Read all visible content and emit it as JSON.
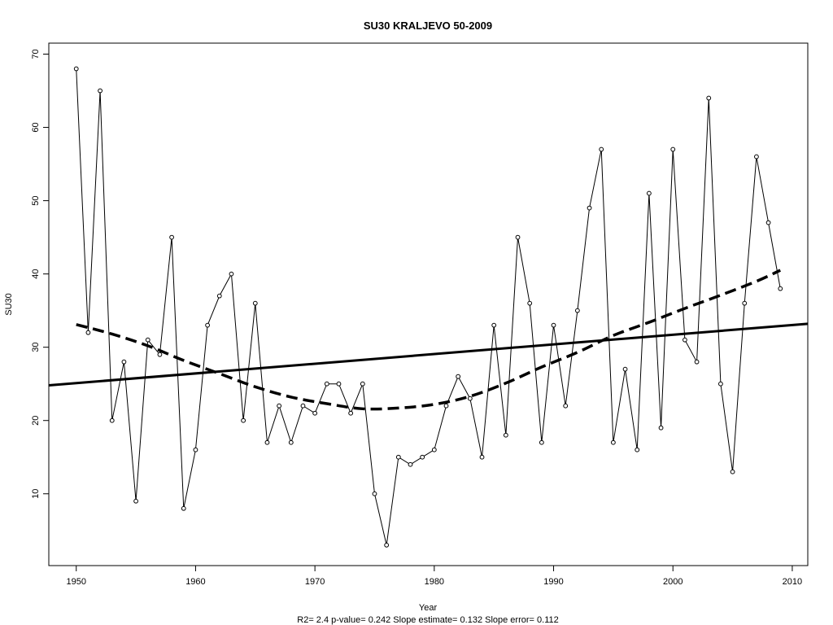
{
  "chart_data": {
    "type": "line",
    "title": "SU30   KRALJEVO 50-2009",
    "xlabel": "Year",
    "ylabel": "SU30",
    "footer": "R2= 2.4  p-value= 0.242  Slope estimate= 0.132  Slope error= 0.112",
    "xlim": [
      1947.7,
      2011.3
    ],
    "ylim": [
      0.2,
      71.5
    ],
    "x_ticks": [
      1950,
      1960,
      1970,
      1980,
      1990,
      2000,
      2010
    ],
    "y_ticks": [
      10,
      20,
      30,
      40,
      50,
      60,
      70
    ],
    "grid": false,
    "legend": "none",
    "series": [
      {
        "style": "line-with-open-circles",
        "x": [
          1950,
          1951,
          1952,
          1953,
          1954,
          1955,
          1956,
          1957,
          1958,
          1959,
          1960,
          1961,
          1962,
          1963,
          1964,
          1965,
          1966,
          1967,
          1968,
          1969,
          1970,
          1971,
          1972,
          1973,
          1974,
          1975,
          1976,
          1977,
          1978,
          1979,
          1980,
          1981,
          1982,
          1983,
          1984,
          1985,
          1986,
          1987,
          1988,
          1989,
          1990,
          1991,
          1992,
          1993,
          1994,
          1995,
          1996,
          1997,
          1998,
          1999,
          2000,
          2001,
          2002,
          2003,
          2004,
          2005,
          2006,
          2007,
          2008,
          2009
        ],
        "values": [
          68,
          32,
          65,
          20,
          28,
          9,
          31,
          29,
          45,
          8,
          16,
          33,
          37,
          40,
          20,
          36,
          17,
          22,
          17,
          22,
          21,
          25,
          25,
          21,
          25,
          10,
          3,
          15,
          14,
          15,
          16,
          22,
          26,
          23,
          15,
          33,
          18,
          45,
          36,
          17,
          33,
          22,
          35,
          49,
          57,
          17,
          27,
          16,
          51,
          19,
          57,
          31,
          28,
          64,
          25,
          13,
          36,
          56,
          47,
          38
        ]
      }
    ],
    "trend_line": {
      "style": "solid-thick",
      "x": [
        1947.7,
        2011.3
      ],
      "values": [
        24.8,
        33.2
      ]
    },
    "smooth_curve": {
      "style": "dashed-thick",
      "x": [
        1950,
        1953,
        1956,
        1959,
        1962,
        1965,
        1968,
        1971,
        1974,
        1977,
        1980,
        1983,
        1986,
        1989,
        1992,
        1995,
        1998,
        2001,
        2004,
        2007,
        2009
      ],
      "values": [
        33.1,
        31.8,
        30.2,
        28.2,
        26.4,
        24.6,
        23.2,
        22.3,
        21.6,
        21.7,
        22.2,
        23.3,
        25.1,
        27.3,
        29.3,
        31.6,
        33.4,
        35.3,
        37.1,
        39.0,
        40.5
      ]
    }
  }
}
